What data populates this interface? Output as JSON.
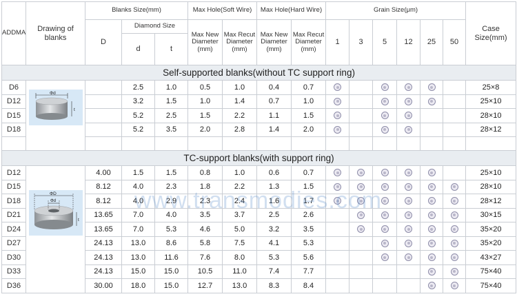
{
  "header": {
    "addma": "ADDMA",
    "drawing": "Drawing of blanks",
    "blanks_size": "Blanks Size(mm)",
    "d_upper": "D",
    "diamond_size": "Diamond Size",
    "d_lower": "d",
    "t": "t",
    "max_hole_soft": "Max Hole(Soft Wire)",
    "max_hole_hard": "Max Hole(Hard Wire)",
    "max_new_diameter": "Max New Diameter (mm)",
    "max_recut_diameter": "Max Recut Diameter (mm)",
    "grain_size": "Grain Size(μm)",
    "grain_cols": [
      "1",
      "3",
      "5",
      "12",
      "25",
      "50"
    ],
    "case_size": "Case Size(mm)"
  },
  "sections": [
    {
      "title": "Self-supported blanks(without TC support ring)",
      "drawing_labels": {
        "diameter": "Φd",
        "thickness": "t"
      },
      "rows": [
        {
          "id": "D6",
          "D": "",
          "d": "2.5",
          "t": "1.0",
          "soft_new": "0.5",
          "soft_recut": "1.0",
          "hard_new": "0.4",
          "hard_recut": "0.7",
          "grains": [
            true,
            false,
            true,
            true,
            true,
            false
          ],
          "case": "25×8"
        },
        {
          "id": "D12",
          "D": "",
          "d": "3.2",
          "t": "1.5",
          "soft_new": "1.0",
          "soft_recut": "1.4",
          "hard_new": "0.7",
          "hard_recut": "1.0",
          "grains": [
            true,
            false,
            true,
            true,
            true,
            false
          ],
          "case": "25×10"
        },
        {
          "id": "D15",
          "D": "",
          "d": "5.2",
          "t": "2.5",
          "soft_new": "1.5",
          "soft_recut": "2.2",
          "hard_new": "1.1",
          "hard_recut": "1.5",
          "grains": [
            true,
            false,
            true,
            true,
            false,
            false
          ],
          "case": "28×10"
        },
        {
          "id": "D18",
          "D": "",
          "d": "5.2",
          "t": "3.5",
          "soft_new": "2.0",
          "soft_recut": "2.8",
          "hard_new": "1.4",
          "hard_recut": "2.0",
          "grains": [
            true,
            false,
            true,
            true,
            false,
            false
          ],
          "case": "28×12"
        }
      ]
    },
    {
      "title": "TC-support blanks(with support ring)",
      "drawing_labels": {
        "outer": "ΦD",
        "inner": "Φd",
        "thickness": "t"
      },
      "rows": [
        {
          "id": "D12",
          "D": "4.00",
          "d": "1.5",
          "t": "1.5",
          "soft_new": "0.8",
          "soft_recut": "1.0",
          "hard_new": "0.6",
          "hard_recut": "0.7",
          "grains": [
            true,
            true,
            true,
            true,
            true,
            false
          ],
          "case": "25×10"
        },
        {
          "id": "D15",
          "D": "8.12",
          "d": "4.0",
          "t": "2.3",
          "soft_new": "1.8",
          "soft_recut": "2.2",
          "hard_new": "1.3",
          "hard_recut": "1.5",
          "grains": [
            true,
            true,
            true,
            true,
            true,
            true
          ],
          "case": "28×10"
        },
        {
          "id": "D18",
          "D": "8.12",
          "d": "4.0",
          "t": "2.9",
          "soft_new": "2.3",
          "soft_recut": "2.4",
          "hard_new": "1.6",
          "hard_recut": "1.7",
          "grains": [
            true,
            true,
            true,
            true,
            true,
            true
          ],
          "case": "28×12"
        },
        {
          "id": "D21",
          "D": "13.65",
          "d": "7.0",
          "t": "4.0",
          "soft_new": "3.5",
          "soft_recut": "3.7",
          "hard_new": "2.5",
          "hard_recut": "2.6",
          "grains": [
            false,
            true,
            true,
            true,
            true,
            true
          ],
          "case": "30×15"
        },
        {
          "id": "D24",
          "D": "13.65",
          "d": "7.0",
          "t": "5.3",
          "soft_new": "4.6",
          "soft_recut": "5.0",
          "hard_new": "3.2",
          "hard_recut": "3.5",
          "grains": [
            false,
            true,
            true,
            true,
            true,
            true
          ],
          "case": "35×20"
        },
        {
          "id": "D27",
          "D": "24.13",
          "d": "13.0",
          "t": "8.6",
          "soft_new": "5.8",
          "soft_recut": "7.5",
          "hard_new": "4.1",
          "hard_recut": "5.3",
          "grains": [
            false,
            false,
            true,
            true,
            true,
            true
          ],
          "case": "35×20"
        },
        {
          "id": "D30",
          "D": "24.13",
          "d": "13.0",
          "t": "11.6",
          "soft_new": "7.6",
          "soft_recut": "8.0",
          "hard_new": "5.3",
          "hard_recut": "5.6",
          "grains": [
            false,
            false,
            true,
            true,
            true,
            true
          ],
          "case": "43×27"
        },
        {
          "id": "D33",
          "D": "24.13",
          "d": "15.0",
          "t": "15.0",
          "soft_new": "10.5",
          "soft_recut": "11.0",
          "hard_new": "7.4",
          "hard_recut": "7.7",
          "grains": [
            false,
            false,
            false,
            false,
            true,
            true
          ],
          "case": "75×40"
        },
        {
          "id": "D36",
          "D": "30.00",
          "d": "18.0",
          "t": "15.0",
          "soft_new": "12.7",
          "soft_recut": "13.0",
          "hard_new": "8.3",
          "hard_recut": "8.4",
          "grains": [
            false,
            false,
            false,
            false,
            true,
            true
          ],
          "case": "75×40"
        }
      ]
    }
  ],
  "watermark": "www.transmodies.com"
}
